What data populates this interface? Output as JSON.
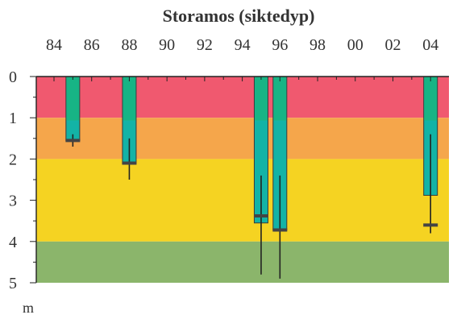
{
  "chart_data": {
    "type": "bar",
    "title": "Storamos (siktedyp)",
    "xlabel": "",
    "ylabel": "m",
    "x_ticks": [
      "84",
      "86",
      "88",
      "90",
      "92",
      "94",
      "96",
      "98",
      "00",
      "02",
      "04"
    ],
    "y_ticks": [
      "0",
      "1",
      "2",
      "3",
      "4",
      "5"
    ],
    "ylim": [
      0,
      5
    ],
    "y_inverted": true,
    "bands": [
      {
        "from": 0,
        "to": 1,
        "color": "#f0596f"
      },
      {
        "from": 1,
        "to": 2,
        "color": "#f5a64b"
      },
      {
        "from": 2,
        "to": 4,
        "color": "#f5d322"
      },
      {
        "from": 4,
        "to": 5,
        "color": "#8bb56b"
      }
    ],
    "bar_color": "#13b3a6",
    "bar_top_color": "#1bb56a",
    "series": [
      {
        "year": 1985,
        "depth": 1.55,
        "mean": 1.55,
        "min": 1.4,
        "max": 1.7
      },
      {
        "year": 1988,
        "depth": 2.1,
        "mean": 2.1,
        "min": 1.5,
        "max": 2.5
      },
      {
        "year": 1995,
        "depth": 3.55,
        "mean": 3.38,
        "min": 2.4,
        "max": 4.8
      },
      {
        "year": 1996,
        "depth": 3.72,
        "mean": 3.72,
        "min": 2.4,
        "max": 4.9
      },
      {
        "year": 2004,
        "depth": 2.88,
        "mean": 3.6,
        "min": 1.4,
        "max": 3.8
      }
    ]
  }
}
